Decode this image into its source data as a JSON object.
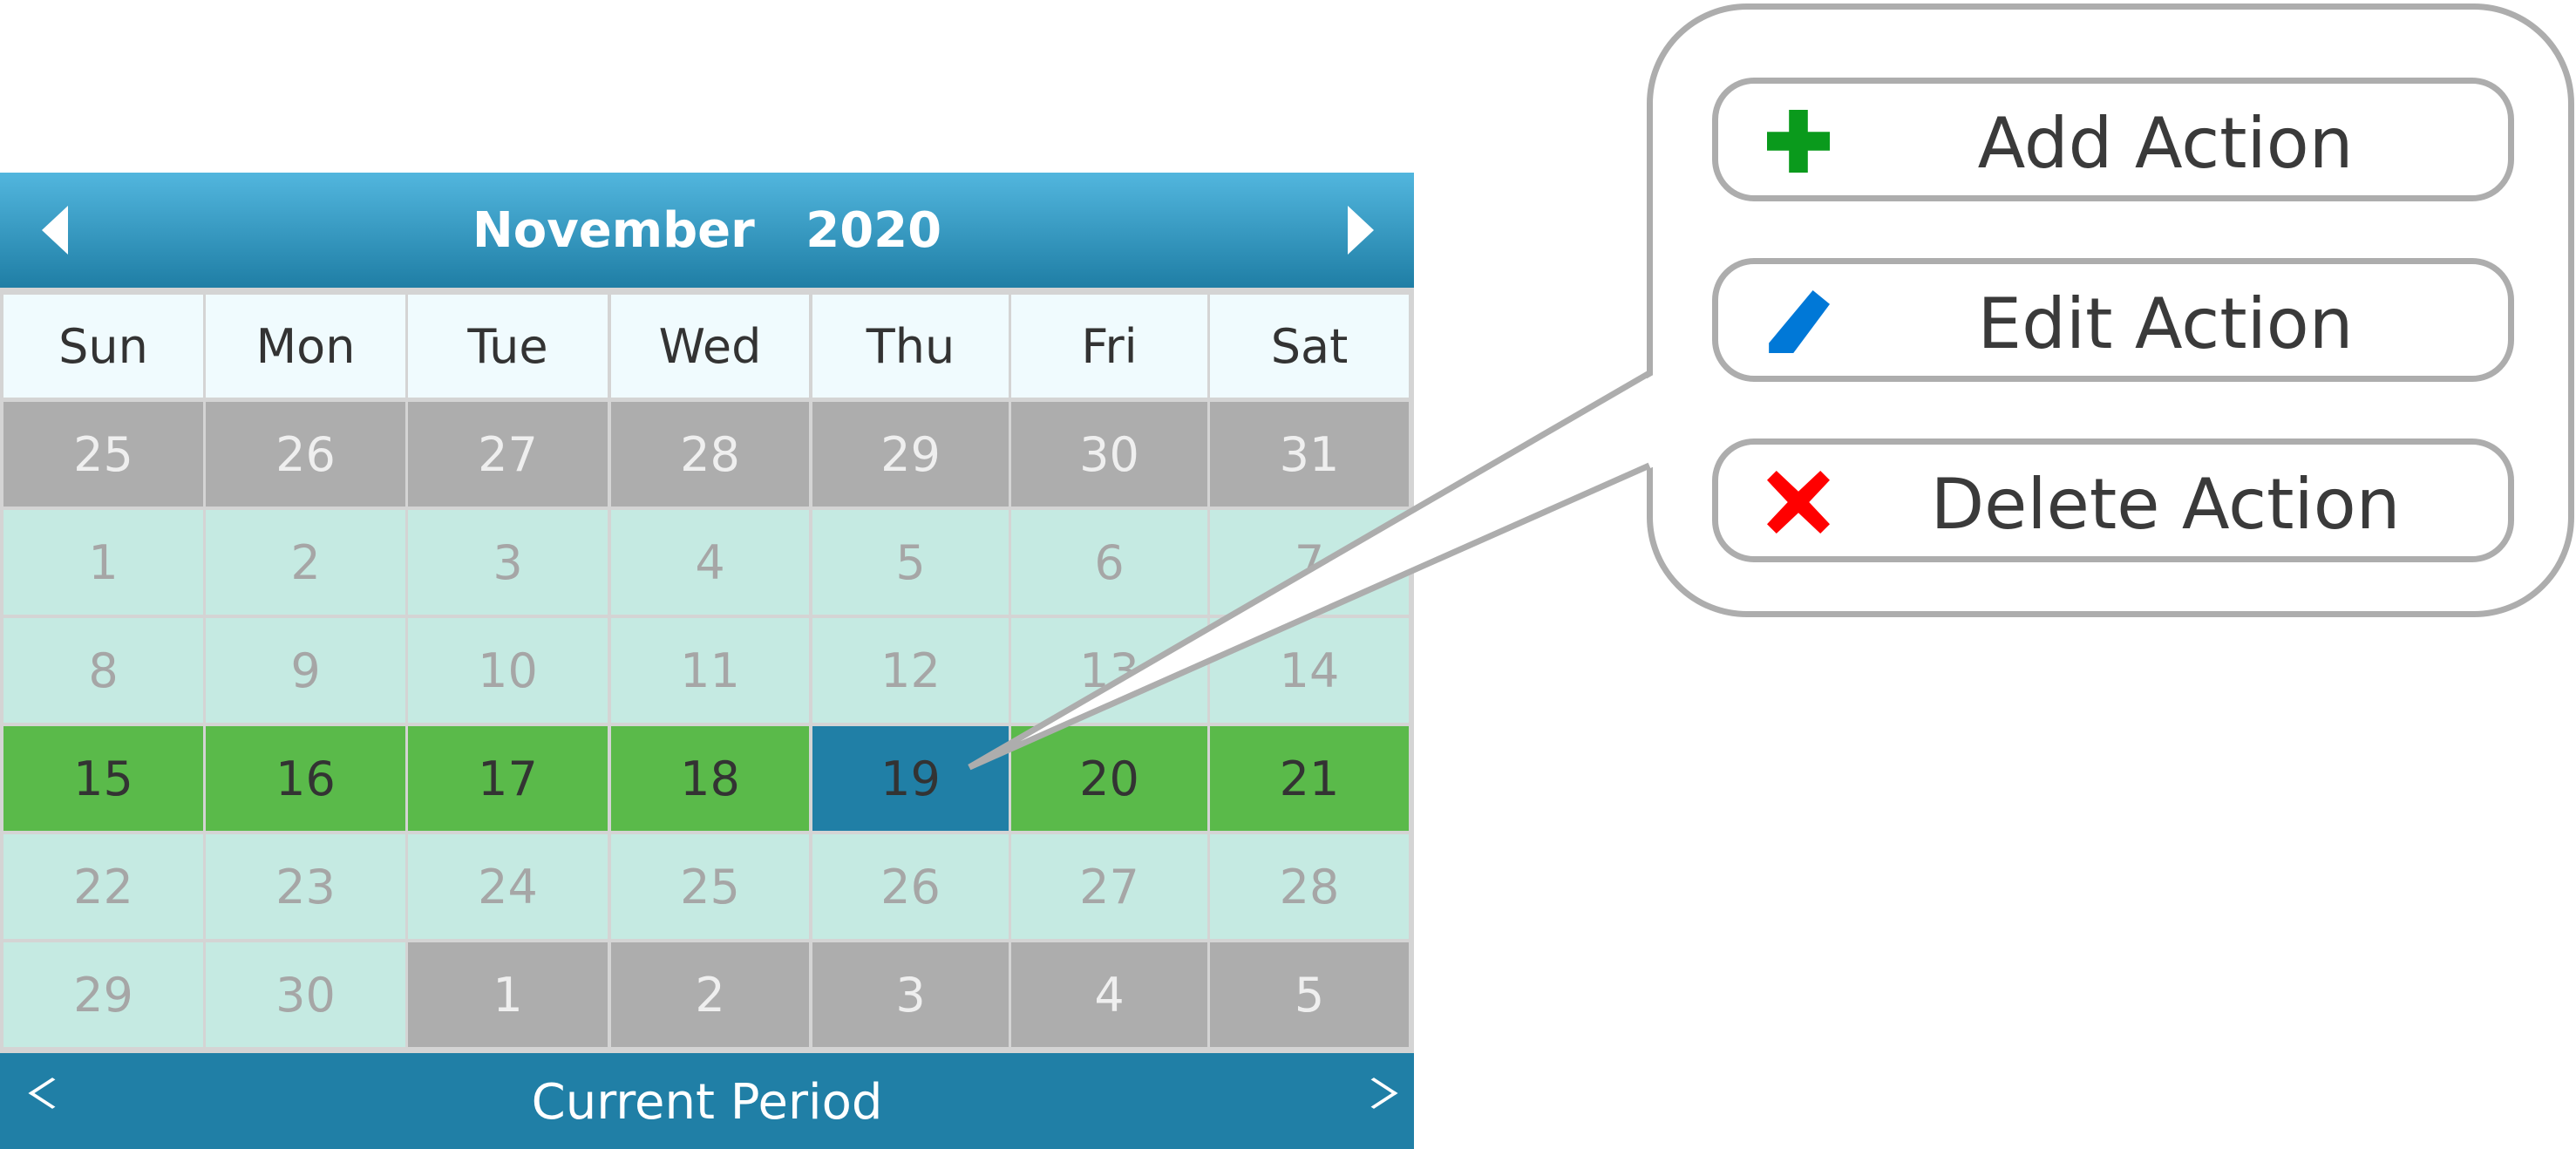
{
  "calendar": {
    "month": "November",
    "year": "2020",
    "title": "November   2020",
    "weekdays": [
      "Sun",
      "Mon",
      "Tue",
      "Wed",
      "Thu",
      "Fri",
      "Sat"
    ],
    "weeks": [
      [
        {
          "d": "25",
          "t": "other"
        },
        {
          "d": "26",
          "t": "other"
        },
        {
          "d": "27",
          "t": "other"
        },
        {
          "d": "28",
          "t": "other"
        },
        {
          "d": "29",
          "t": "other"
        },
        {
          "d": "30",
          "t": "other"
        },
        {
          "d": "31",
          "t": "other"
        }
      ],
      [
        {
          "d": "1",
          "t": "cur"
        },
        {
          "d": "2",
          "t": "cur"
        },
        {
          "d": "3",
          "t": "cur"
        },
        {
          "d": "4",
          "t": "cur"
        },
        {
          "d": "5",
          "t": "cur"
        },
        {
          "d": "6",
          "t": "cur"
        },
        {
          "d": "7",
          "t": "cur"
        }
      ],
      [
        {
          "d": "8",
          "t": "cur"
        },
        {
          "d": "9",
          "t": "cur"
        },
        {
          "d": "10",
          "t": "cur"
        },
        {
          "d": "11",
          "t": "cur"
        },
        {
          "d": "12",
          "t": "cur"
        },
        {
          "d": "13",
          "t": "cur"
        },
        {
          "d": "14",
          "t": "cur"
        }
      ],
      [
        {
          "d": "15",
          "t": "week"
        },
        {
          "d": "16",
          "t": "week"
        },
        {
          "d": "17",
          "t": "week"
        },
        {
          "d": "18",
          "t": "week"
        },
        {
          "d": "19",
          "t": "sel"
        },
        {
          "d": "20",
          "t": "week"
        },
        {
          "d": "21",
          "t": "week"
        }
      ],
      [
        {
          "d": "22",
          "t": "cur"
        },
        {
          "d": "23",
          "t": "cur"
        },
        {
          "d": "24",
          "t": "cur"
        },
        {
          "d": "25",
          "t": "cur"
        },
        {
          "d": "26",
          "t": "cur"
        },
        {
          "d": "27",
          "t": "cur"
        },
        {
          "d": "28",
          "t": "cur"
        }
      ],
      [
        {
          "d": "29",
          "t": "cur"
        },
        {
          "d": "30",
          "t": "cur"
        },
        {
          "d": "1",
          "t": "other"
        },
        {
          "d": "2",
          "t": "other"
        },
        {
          "d": "3",
          "t": "other"
        },
        {
          "d": "4",
          "t": "other"
        },
        {
          "d": "5",
          "t": "other"
        }
      ]
    ],
    "selected_day": "19",
    "footer_label": "Current Period"
  },
  "context_menu": {
    "items": [
      {
        "label": "Add Action",
        "icon": "plus-icon",
        "color": "#0a9a1c"
      },
      {
        "label": "Edit Action",
        "icon": "pencil-icon",
        "color": "#0078d7"
      },
      {
        "label": "Delete Action",
        "icon": "x-icon",
        "color": "#ff0000"
      }
    ]
  },
  "colors": {
    "header": "#207fa6",
    "week_highlight": "#5aba4a",
    "selected": "#207fa6",
    "current_month": "#c5eae2",
    "other_month": "#adadad"
  }
}
